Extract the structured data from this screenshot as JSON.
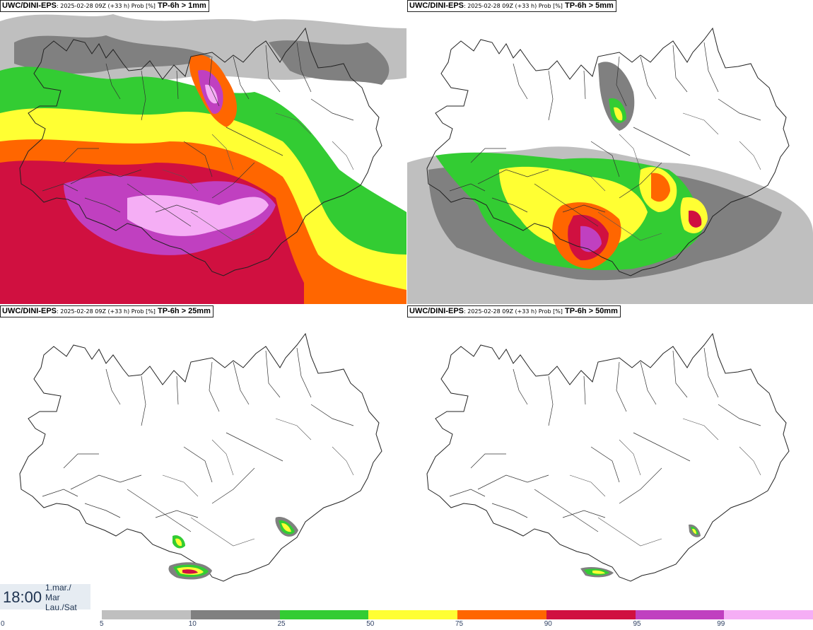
{
  "panels": [
    {
      "model": "UWC/DINI-EPS",
      "run": ": 2025-02-28 09Z (+33 h) Prob [%]",
      "param": " TP-6h > 1mm"
    },
    {
      "model": "UWC/DINI-EPS",
      "run": ": 2025-02-28 09Z (+33 h) Prob [%]",
      "param": " TP-6h > 5mm"
    },
    {
      "model": "UWC/DINI-EPS",
      "run": ": 2025-02-28 09Z (+33 h) Prob [%]",
      "param": " TP-6h > 25mm"
    },
    {
      "model": "UWC/DINI-EPS",
      "run": ": 2025-02-28 09Z (+33 h) Prob [%]",
      "param": " TP-6h > 50mm"
    }
  ],
  "valid_time": {
    "time": "18:00",
    "day_line": "1.mar./",
    "month_line": "Mar",
    "weekday_line": "Lau./Sat"
  },
  "legend": {
    "colors": [
      "#bfbfbf",
      "#808080",
      "#33cc33",
      "#ffff33",
      "#ff6600",
      "#d01040",
      "#c040c0",
      "#f5aef5"
    ],
    "ticks": [
      "0",
      "5",
      "10",
      "25",
      "50",
      "75",
      "90",
      "95",
      "99"
    ]
  }
}
